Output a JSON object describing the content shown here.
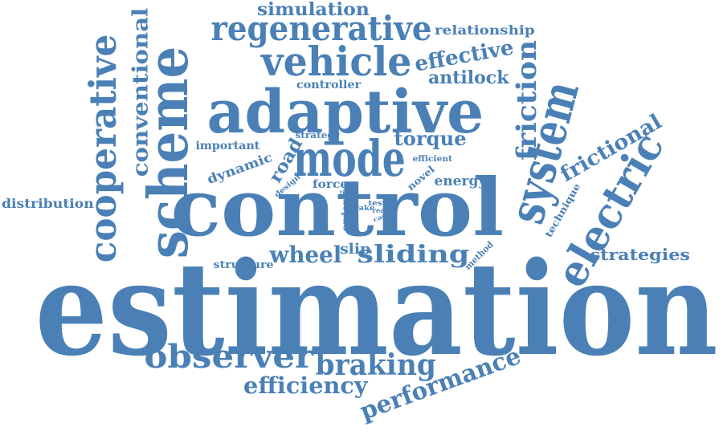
{
  "color": "#4a80b6",
  "words": [
    {
      "id": "estimation",
      "text": "estimation"
    },
    {
      "id": "control",
      "text": "control"
    },
    {
      "id": "adaptive",
      "text": "adaptive"
    },
    {
      "id": "scheme",
      "text": "scheme"
    },
    {
      "id": "vehicle",
      "text": "vehicle"
    },
    {
      "id": "mode",
      "text": "mode"
    },
    {
      "id": "system",
      "text": "system"
    },
    {
      "id": "electric",
      "text": "electric"
    },
    {
      "id": "cooperative",
      "text": "cooperative"
    },
    {
      "id": "regenerative",
      "text": "regenerative"
    },
    {
      "id": "observer",
      "text": "observer"
    },
    {
      "id": "braking",
      "text": "braking"
    },
    {
      "id": "friction",
      "text": "friction"
    },
    {
      "id": "frictional",
      "text": "frictional"
    },
    {
      "id": "sliding",
      "text": "sliding"
    },
    {
      "id": "performance",
      "text": "performance"
    },
    {
      "id": "efficiency",
      "text": "efficiency"
    },
    {
      "id": "wheel",
      "text": "wheel"
    },
    {
      "id": "conventional",
      "text": "conventional"
    },
    {
      "id": "effective",
      "text": "effective"
    },
    {
      "id": "torque",
      "text": "torque"
    },
    {
      "id": "simulation",
      "text": "simulation"
    },
    {
      "id": "antilock",
      "text": "antilock"
    },
    {
      "id": "strategies",
      "text": "strategies"
    },
    {
      "id": "relationship",
      "text": "relationship"
    },
    {
      "id": "distribution",
      "text": "distribution"
    },
    {
      "id": "road",
      "text": "road"
    },
    {
      "id": "dynamic",
      "text": "dynamic"
    },
    {
      "id": "slip",
      "text": "slip"
    },
    {
      "id": "energy",
      "text": "energy"
    },
    {
      "id": "controller",
      "text": "controller"
    },
    {
      "id": "important",
      "text": "important"
    },
    {
      "id": "structure",
      "text": "structure"
    },
    {
      "id": "force",
      "text": "force"
    },
    {
      "id": "strategy",
      "text": "strategy"
    },
    {
      "id": "efficient",
      "text": "efficient"
    },
    {
      "id": "novel",
      "text": "novel"
    },
    {
      "id": "design",
      "text": "design"
    },
    {
      "id": "brake",
      "text": "brake"
    },
    {
      "id": "motor",
      "text": "motor"
    },
    {
      "id": "order",
      "text": "order"
    },
    {
      "id": "tire",
      "text": "tire"
    },
    {
      "id": "test",
      "text": "test"
    },
    {
      "id": "rear",
      "text": "rear"
    },
    {
      "id": "case",
      "text": "case"
    },
    {
      "id": "technique",
      "text": "technique"
    },
    {
      "id": "method",
      "text": "method"
    }
  ]
}
